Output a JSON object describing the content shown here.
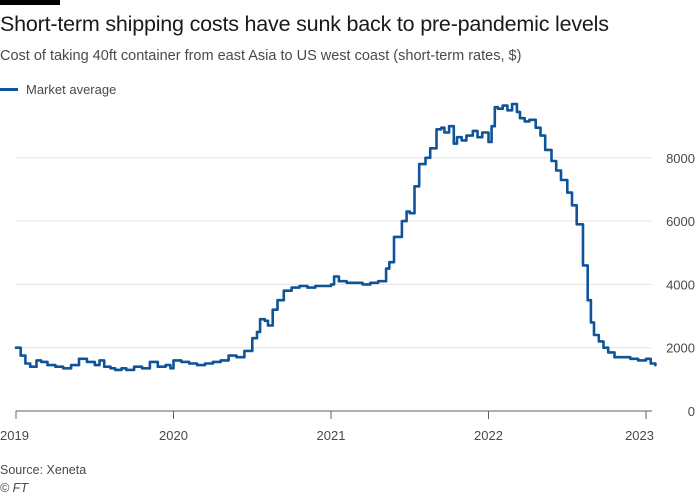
{
  "chart_data": {
    "type": "line",
    "title": "Short-term shipping costs have sunk back to pre-pandemic levels",
    "subtitle": "Cost of taking 40ft container from east Asia to US west coast (short-term rates, $)",
    "xlabel": "",
    "ylabel": "",
    "xlim": [
      2019.0,
      2023.1
    ],
    "ylim": [
      0,
      10000
    ],
    "x_ticks": [
      2019,
      2020,
      2021,
      2022,
      2023
    ],
    "x_tick_labels": [
      "2019",
      "2020",
      "2021",
      "2022",
      "2023"
    ],
    "y_ticks": [
      0,
      2000,
      4000,
      6000,
      8000
    ],
    "y_tick_labels": [
      "0",
      "2000",
      "4000",
      "6000",
      "8000"
    ],
    "grid": true,
    "legend_position": "top-left",
    "series": [
      {
        "name": "Market average",
        "color": "#0f5499",
        "x": [
          2019.0,
          2019.03,
          2019.06,
          2019.09,
          2019.13,
          2019.16,
          2019.2,
          2019.25,
          2019.3,
          2019.35,
          2019.4,
          2019.45,
          2019.5,
          2019.53,
          2019.56,
          2019.6,
          2019.63,
          2019.67,
          2019.7,
          2019.75,
          2019.8,
          2019.85,
          2019.9,
          2019.95,
          2019.98,
          2020.0,
          2020.05,
          2020.1,
          2020.15,
          2020.2,
          2020.25,
          2020.3,
          2020.35,
          2020.4,
          2020.45,
          2020.5,
          2020.53,
          2020.55,
          2020.58,
          2020.6,
          2020.63,
          2020.66,
          2020.7,
          2020.75,
          2020.8,
          2020.85,
          2020.9,
          2020.95,
          2021.0,
          2021.02,
          2021.05,
          2021.1,
          2021.15,
          2021.2,
          2021.25,
          2021.3,
          2021.35,
          2021.37,
          2021.4,
          2021.43,
          2021.45,
          2021.48,
          2021.5,
          2021.53,
          2021.56,
          2021.6,
          2021.63,
          2021.67,
          2021.7,
          2021.72,
          2021.75,
          2021.78,
          2021.8,
          2021.83,
          2021.86,
          2021.9,
          2021.93,
          2021.96,
          2022.0,
          2022.02,
          2022.04,
          2022.06,
          2022.09,
          2022.12,
          2022.15,
          2022.18,
          2022.2,
          2022.23,
          2022.26,
          2022.3,
          2022.33,
          2022.36,
          2022.4,
          2022.43,
          2022.46,
          2022.5,
          2022.53,
          2022.56,
          2022.6,
          2022.63,
          2022.65,
          2022.67,
          2022.7,
          2022.73,
          2022.76,
          2022.8,
          2022.85,
          2022.9,
          2022.95,
          2023.0,
          2023.03,
          2023.06
        ],
        "y": [
          2000,
          1750,
          1500,
          1400,
          1600,
          1550,
          1450,
          1400,
          1350,
          1450,
          1650,
          1550,
          1450,
          1600,
          1400,
          1350,
          1300,
          1350,
          1300,
          1400,
          1350,
          1550,
          1400,
          1450,
          1350,
          1600,
          1550,
          1500,
          1450,
          1500,
          1550,
          1600,
          1750,
          1700,
          1900,
          2300,
          2500,
          2900,
          2850,
          2700,
          3200,
          3500,
          3800,
          3900,
          3950,
          3900,
          3950,
          3950,
          4000,
          4250,
          4100,
          4050,
          4050,
          4000,
          4050,
          4100,
          4500,
          4700,
          5500,
          5500,
          6000,
          6300,
          6250,
          7100,
          7800,
          8000,
          8300,
          8900,
          8950,
          8800,
          9000,
          8450,
          8650,
          8550,
          8700,
          8850,
          8650,
          8800,
          8500,
          9000,
          9600,
          9550,
          9650,
          9500,
          9700,
          9450,
          9250,
          9150,
          9200,
          8950,
          8700,
          8250,
          7900,
          7600,
          7300,
          6900,
          6500,
          5900,
          4600,
          3500,
          2800,
          2400,
          2200,
          2000,
          1850,
          1700,
          1700,
          1650,
          1600,
          1650,
          1500,
          1450
        ]
      }
    ]
  },
  "source": "Source: Xeneta",
  "credit": "© FT"
}
